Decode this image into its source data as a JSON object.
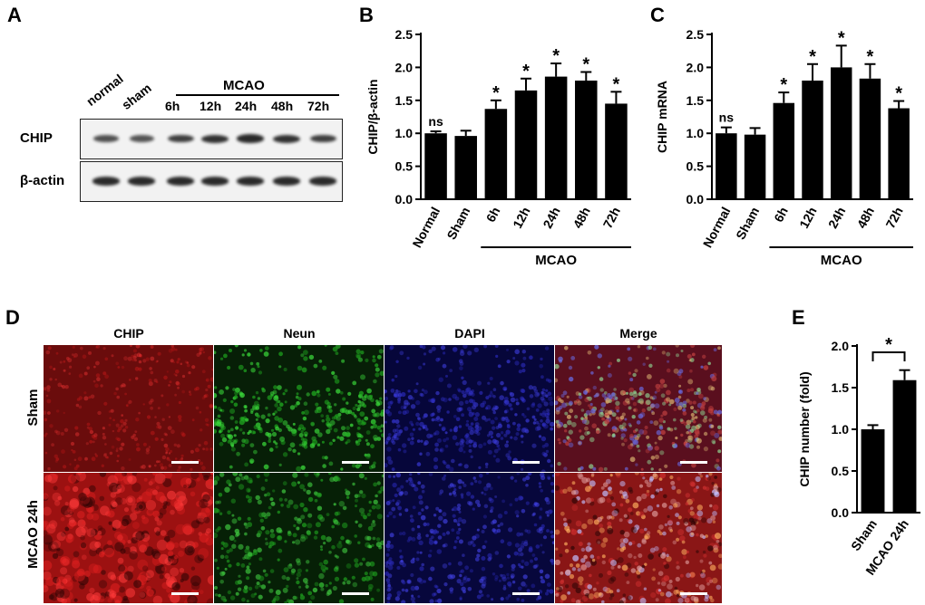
{
  "panel_labels": {
    "a": "A",
    "b": "B",
    "c": "C",
    "d": "D",
    "e": "E"
  },
  "western_blot": {
    "lanes": [
      "normal",
      "sham",
      "6h",
      "12h",
      "24h",
      "48h",
      "72h"
    ],
    "group_label": "MCAO",
    "rows": [
      "CHIP",
      "β-actin"
    ],
    "chip_intensity": [
      0.55,
      0.5,
      0.7,
      0.8,
      0.85,
      0.8,
      0.7
    ],
    "actin_intensity": [
      0.85,
      0.85,
      0.85,
      0.85,
      0.85,
      0.85,
      0.85
    ]
  },
  "if_panel": {
    "columns": [
      "CHIP",
      "Neun",
      "DAPI",
      "Merge"
    ],
    "rows": [
      "Sham",
      "MCAO 24h"
    ]
  },
  "chart_data": [
    {
      "type": "bar",
      "id": "B",
      "categories": [
        "Normal",
        "Sham",
        "6h",
        "12h",
        "24h",
        "48h",
        "72h"
      ],
      "values": [
        1.0,
        0.96,
        1.37,
        1.65,
        1.86,
        1.8,
        1.45
      ],
      "errors": [
        0.03,
        0.08,
        0.13,
        0.18,
        0.2,
        0.13,
        0.18
      ],
      "annotations": [
        "ns",
        "",
        "*",
        "*",
        "*",
        "*",
        "*"
      ],
      "group_label": "MCAO",
      "group_range": [
        2,
        6
      ],
      "ylabel": "CHIP/β-actin",
      "ylim": [
        0,
        2.5
      ],
      "yticks": [
        "0.0",
        "0.5",
        "1.0",
        "1.5",
        "2.0",
        "2.5"
      ]
    },
    {
      "type": "bar",
      "id": "C",
      "categories": [
        "Normal",
        "Sham",
        "6h",
        "12h",
        "24h",
        "48h",
        "72h"
      ],
      "values": [
        1.0,
        0.98,
        1.46,
        1.8,
        2.0,
        1.83,
        1.38
      ],
      "errors": [
        0.09,
        0.1,
        0.16,
        0.25,
        0.33,
        0.22,
        0.11
      ],
      "annotations": [
        "ns",
        "",
        "*",
        "*",
        "*",
        "*",
        "*"
      ],
      "group_label": "MCAO",
      "group_range": [
        2,
        6
      ],
      "ylabel": "CHIP mRNA",
      "ylim": [
        0,
        2.5
      ],
      "yticks": [
        "0.0",
        "0.5",
        "1.0",
        "1.5",
        "2.0",
        "2.5"
      ]
    },
    {
      "type": "bar",
      "id": "E",
      "categories": [
        "Sham",
        "MCAO 24h"
      ],
      "values": [
        1.0,
        1.59
      ],
      "errors": [
        0.05,
        0.12
      ],
      "significance": "*",
      "ylabel": "CHIP number (fold)",
      "ylim": [
        0,
        2.0
      ],
      "yticks": [
        "0.0",
        "0.5",
        "1.0",
        "1.5",
        "2.0"
      ]
    }
  ]
}
